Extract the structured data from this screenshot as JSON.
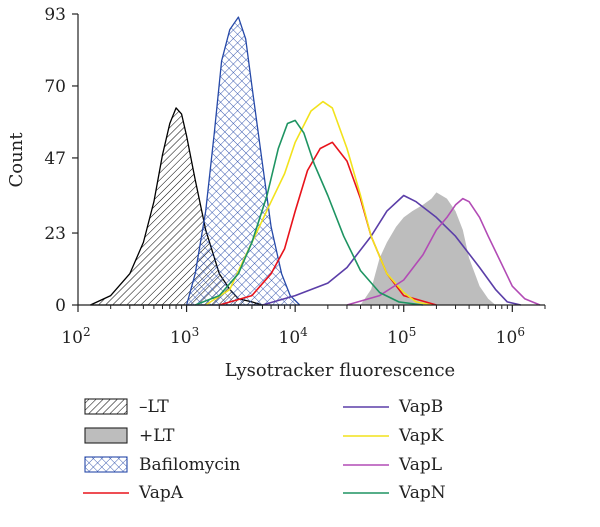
{
  "chart_data": {
    "type": "area",
    "xlabel": "Lysotracker fluorescence",
    "ylabel": "Count",
    "x_scale": "log",
    "xlim": [
      100,
      2000000
    ],
    "ylim": [
      0,
      93
    ],
    "x_ticks": [
      {
        "value": 100,
        "base": "10",
        "exp": "2"
      },
      {
        "value": 1000,
        "base": "10",
        "exp": "3"
      },
      {
        "value": 10000,
        "base": "10",
        "exp": "4"
      },
      {
        "value": 100000,
        "base": "10",
        "exp": "5"
      },
      {
        "value": 1000000,
        "base": "10",
        "exp": "6"
      }
    ],
    "y_ticks": [
      "0",
      "23",
      "47",
      "70",
      "93"
    ],
    "grid": false,
    "legend_position": "bottom",
    "series": [
      {
        "name": "+LT",
        "style": "filled-gray",
        "color": "#bdbdbd",
        "x": [
          40000,
          50000,
          60000,
          70000,
          85000,
          100000,
          120000,
          150000,
          180000,
          200000,
          250000,
          300000,
          350000,
          400000,
          500000,
          600000,
          700000
        ],
        "y": [
          0,
          5,
          15,
          20,
          25,
          28,
          30,
          32,
          34,
          36,
          34,
          30,
          24,
          15,
          6,
          2,
          0
        ]
      },
      {
        "name": "–LT",
        "style": "hatched",
        "color": "#000000",
        "x": [
          130,
          200,
          300,
          400,
          500,
          600,
          700,
          800,
          900,
          1000,
          1200,
          1500,
          2000,
          2500,
          3000,
          4000,
          5000
        ],
        "y": [
          0,
          3,
          10,
          20,
          33,
          48,
          58,
          63,
          61,
          54,
          40,
          24,
          10,
          5,
          2,
          1,
          0
        ]
      },
      {
        "name": "Bafilomycin",
        "style": "crosshatch-blue",
        "color": "#2649a8",
        "x": [
          1000,
          1200,
          1500,
          1800,
          2100,
          2500,
          3000,
          3500,
          4000,
          5000,
          6000,
          7500,
          9000,
          11000
        ],
        "y": [
          0,
          10,
          30,
          55,
          78,
          88,
          92,
          85,
          70,
          45,
          25,
          10,
          3,
          0
        ]
      },
      {
        "name": "VapA",
        "style": "line",
        "color": "#e8131b",
        "x": [
          2000,
          4000,
          6000,
          8000,
          10000,
          13000,
          17000,
          22000,
          30000,
          40000,
          50000,
          70000,
          100000,
          200000
        ],
        "y": [
          0,
          3,
          10,
          18,
          30,
          43,
          50,
          52,
          46,
          34,
          22,
          10,
          3,
          0
        ]
      },
      {
        "name": "VapB",
        "style": "line",
        "color": "#5b3ea8",
        "x": [
          5000,
          10000,
          20000,
          30000,
          50000,
          70000,
          100000,
          130000,
          200000,
          300000,
          500000,
          700000,
          900000,
          1200000
        ],
        "y": [
          0,
          3,
          7,
          12,
          22,
          30,
          35,
          33,
          28,
          22,
          12,
          5,
          1,
          0
        ]
      },
      {
        "name": "VapK",
        "style": "line",
        "color": "#f2e21c",
        "x": [
          1500,
          2500,
          4000,
          6000,
          8000,
          10000,
          14000,
          18000,
          22000,
          30000,
          40000,
          50000,
          70000,
          100000,
          130000,
          180000
        ],
        "y": [
          0,
          5,
          20,
          33,
          42,
          52,
          62,
          65,
          63,
          50,
          35,
          22,
          10,
          4,
          1,
          0
        ]
      },
      {
        "name": "VapL",
        "style": "line",
        "color": "#b24bb5",
        "x": [
          30000,
          60000,
          100000,
          150000,
          200000,
          250000,
          300000,
          350000,
          400000,
          500000,
          600000,
          800000,
          1000000,
          1300000,
          1800000
        ],
        "y": [
          0,
          3,
          8,
          16,
          24,
          28,
          32,
          34,
          33,
          28,
          22,
          13,
          6,
          2,
          0
        ]
      },
      {
        "name": "VapN",
        "style": "line",
        "color": "#1e9462",
        "x": [
          1200,
          2000,
          3000,
          4000,
          5500,
          7000,
          8500,
          10000,
          12000,
          15000,
          20000,
          28000,
          40000,
          60000,
          90000,
          150000
        ],
        "y": [
          0,
          3,
          10,
          20,
          35,
          50,
          58,
          59,
          55,
          45,
          35,
          22,
          11,
          4,
          1,
          0
        ]
      }
    ],
    "legend_left": [
      "–LT",
      "+LT",
      "Bafilomycin",
      "VapA"
    ],
    "legend_right": [
      "VapB",
      "VapK",
      "VapL",
      "VapN"
    ]
  }
}
